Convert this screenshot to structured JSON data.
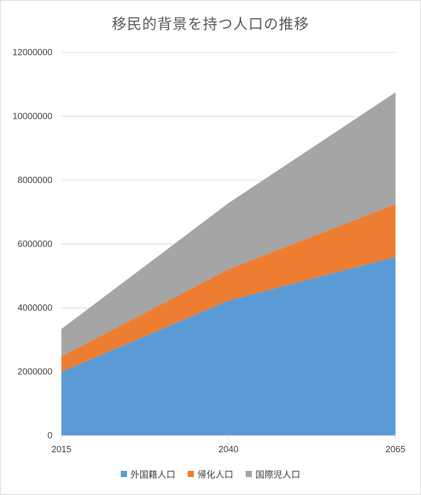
{
  "chart_data": {
    "type": "area",
    "stacked": true,
    "title": "移民的背景を持つ人口の推移",
    "xlabel": "",
    "ylabel": "",
    "categories": [
      "2015",
      "2040",
      "2065"
    ],
    "ylim": [
      0,
      12000000
    ],
    "yticks": [
      "0",
      "2000000",
      "4000000",
      "6000000",
      "8000000",
      "10000000",
      "12000000"
    ],
    "grid": true,
    "legend_position": "bottom",
    "series": [
      {
        "name": "外国籍人口",
        "values": [
          2000000,
          4230000,
          5600000
        ],
        "color": "#5b9bd5"
      },
      {
        "name": "帰化人口",
        "values": [
          480000,
          980000,
          1650000
        ],
        "color": "#ed7d31"
      },
      {
        "name": "国際児人口",
        "values": [
          860000,
          2070000,
          3500000
        ],
        "color": "#a5a5a5"
      }
    ]
  }
}
